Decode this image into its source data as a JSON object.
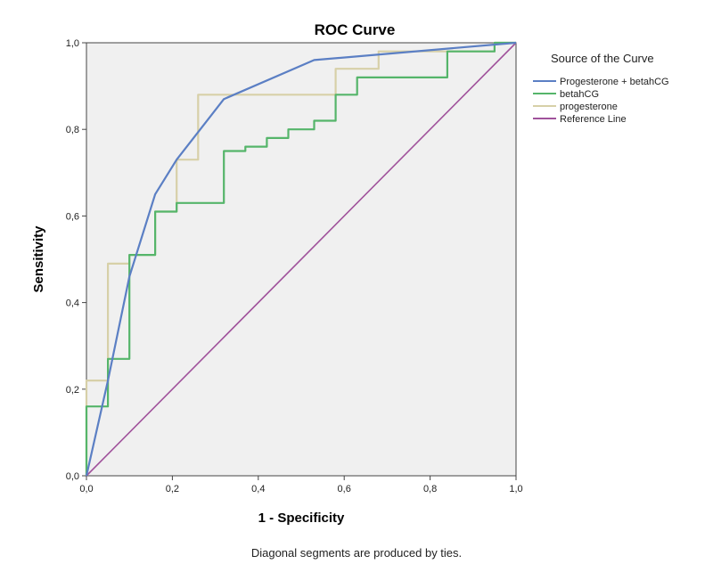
{
  "chart_data": {
    "type": "line",
    "title": "ROC Curve",
    "xlabel": "1 - Specificity",
    "ylabel": "Sensitivity",
    "xlim": [
      0.0,
      1.0
    ],
    "ylim": [
      0.0,
      1.0
    ],
    "xticks": [
      "0,0",
      "0,2",
      "0,4",
      "0,6",
      "0,8",
      "1,0"
    ],
    "yticks": [
      "0,0",
      "0,2",
      "0,4",
      "0,6",
      "0,8",
      "1,0"
    ],
    "grid": false,
    "plot_background": "#f0f0f0",
    "legend_title": "Source of the Curve",
    "legend_position": "right",
    "footnote": "Diagonal segments are produced by ties.",
    "series": [
      {
        "name": "Progesterone + betahCG",
        "color": "#5b7fc4",
        "x": [
          0.0,
          0.05,
          0.1,
          0.16,
          0.21,
          0.32,
          0.53,
          1.0
        ],
        "y": [
          0.0,
          0.22,
          0.46,
          0.65,
          0.73,
          0.87,
          0.96,
          1.0
        ]
      },
      {
        "name": "betahCG",
        "color": "#55b56a",
        "x": [
          0.0,
          0.0,
          0.05,
          0.05,
          0.1,
          0.1,
          0.16,
          0.16,
          0.21,
          0.21,
          0.32,
          0.32,
          0.37,
          0.37,
          0.42,
          0.42,
          0.47,
          0.47,
          0.53,
          0.53,
          0.58,
          0.58,
          0.63,
          0.63,
          0.84,
          0.84,
          0.95,
          0.95,
          1.0
        ],
        "y": [
          0.0,
          0.16,
          0.16,
          0.27,
          0.27,
          0.51,
          0.51,
          0.61,
          0.61,
          0.63,
          0.63,
          0.75,
          0.75,
          0.76,
          0.76,
          0.78,
          0.78,
          0.8,
          0.8,
          0.82,
          0.82,
          0.88,
          0.88,
          0.92,
          0.92,
          0.98,
          0.98,
          1.0,
          1.0
        ]
      },
      {
        "name": "progesterone",
        "color": "#d7d0a8",
        "x": [
          0.0,
          0.0,
          0.05,
          0.05,
          0.1,
          0.1,
          0.16,
          0.16,
          0.21,
          0.21,
          0.26,
          0.26,
          0.58,
          0.58,
          0.68,
          0.68,
          0.95,
          0.95,
          1.0
        ],
        "y": [
          0.0,
          0.22,
          0.22,
          0.49,
          0.49,
          0.51,
          0.51,
          0.61,
          0.61,
          0.73,
          0.73,
          0.88,
          0.88,
          0.94,
          0.94,
          0.98,
          0.98,
          1.0,
          1.0
        ]
      },
      {
        "name": "Reference Line",
        "color": "#a0529b",
        "x": [
          0.0,
          1.0
        ],
        "y": [
          0.0,
          1.0
        ]
      }
    ]
  }
}
